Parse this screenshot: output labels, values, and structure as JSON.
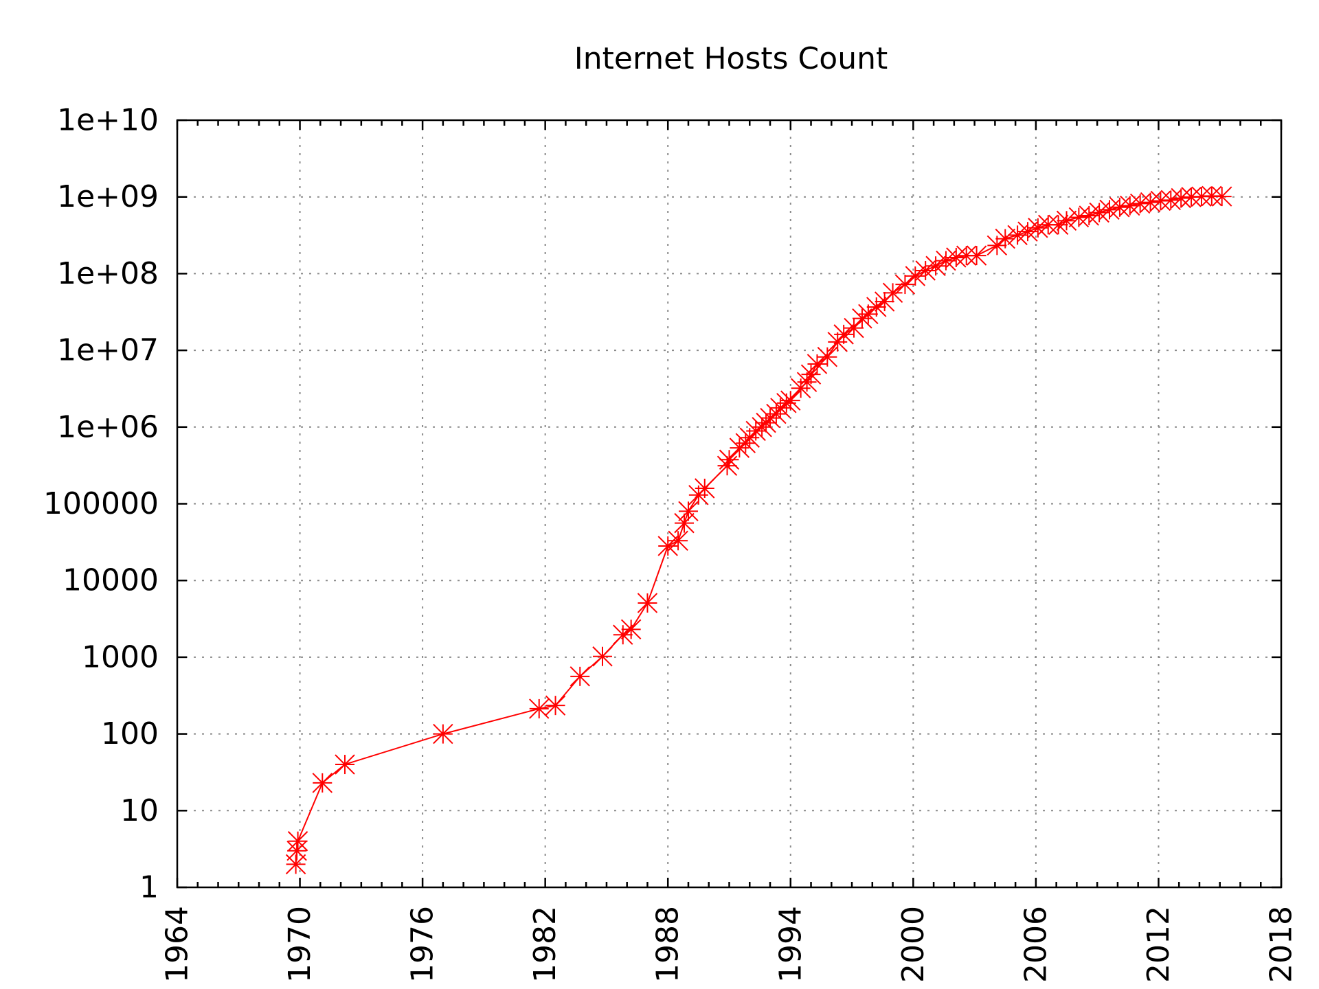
{
  "chart_data": {
    "type": "line",
    "title": "Internet Hosts Count",
    "xlabel": "",
    "ylabel": "",
    "xlim": [
      1964,
      2018
    ],
    "ylim": [
      1,
      10000000000
    ],
    "y_scale": "log",
    "grid": true,
    "marker": "star",
    "color": "#ff0000",
    "x_ticks": [
      "1964",
      "1970",
      "1976",
      "1982",
      "1988",
      "1994",
      "2000",
      "2006",
      "2012",
      "2018"
    ],
    "y_ticks": [
      "1",
      "10",
      "100",
      "1000",
      "10000",
      "100000",
      "1e+06",
      "1e+07",
      "1e+08",
      "1e+09",
      "1e+10"
    ],
    "series": [
      {
        "points": [
          [
            1969.8,
            2
          ],
          [
            1969.85,
            3
          ],
          [
            1969.9,
            4
          ],
          [
            1971.1,
            23
          ],
          [
            1972.2,
            40
          ],
          [
            1977.0,
            100
          ],
          [
            1981.7,
            213
          ],
          [
            1982.5,
            235
          ],
          [
            1983.7,
            562
          ],
          [
            1984.8,
            1024
          ],
          [
            1985.8,
            1961
          ],
          [
            1986.2,
            2308
          ],
          [
            1987.0,
            5089
          ],
          [
            1988.0,
            28174
          ],
          [
            1988.5,
            33000
          ],
          [
            1988.8,
            56000
          ],
          [
            1989.0,
            80000
          ],
          [
            1989.5,
            130000
          ],
          [
            1989.8,
            159000
          ],
          [
            1990.9,
            313000
          ],
          [
            1991.0,
            376000
          ],
          [
            1991.5,
            535000
          ],
          [
            1991.8,
            617000
          ],
          [
            1992.0,
            727000
          ],
          [
            1992.3,
            890000
          ],
          [
            1992.6,
            1000000
          ],
          [
            1992.8,
            1136000
          ],
          [
            1993.0,
            1313000
          ],
          [
            1993.3,
            1486000
          ],
          [
            1993.5,
            1776000
          ],
          [
            1993.8,
            2056000
          ],
          [
            1994.0,
            2217000
          ],
          [
            1994.5,
            3212000
          ],
          [
            1994.8,
            3864000
          ],
          [
            1995.0,
            4852000
          ],
          [
            1995.3,
            6642000
          ],
          [
            1995.8,
            8200000
          ],
          [
            1996.3,
            12881000
          ],
          [
            1996.6,
            16146000
          ],
          [
            1997.1,
            19540000
          ],
          [
            1997.5,
            26053000
          ],
          [
            1997.8,
            29670000
          ],
          [
            1998.2,
            36739000
          ],
          [
            1998.6,
            43230000
          ],
          [
            1999.0,
            56218000
          ],
          [
            1999.6,
            72398000
          ],
          [
            2000.1,
            93047000
          ],
          [
            2000.6,
            109574000
          ],
          [
            2001.1,
            125888000
          ],
          [
            2001.6,
            147345000
          ],
          [
            2002.1,
            162128000
          ],
          [
            2002.6,
            171638000
          ],
          [
            2003.1,
            172000000
          ],
          [
            2004.1,
            233101000
          ],
          [
            2004.5,
            285139000
          ],
          [
            2005.1,
            317646000
          ],
          [
            2005.6,
            353284000
          ],
          [
            2006.1,
            394991000
          ],
          [
            2006.6,
            433193000
          ],
          [
            2007.1,
            433000000
          ],
          [
            2007.5,
            489774000
          ],
          [
            2008.1,
            541677000
          ],
          [
            2008.6,
            570000000
          ],
          [
            2009.1,
            625226000
          ],
          [
            2009.6,
            681064000
          ],
          [
            2010.1,
            732740000
          ],
          [
            2010.6,
            768913000
          ],
          [
            2011.1,
            818374000
          ],
          [
            2011.6,
            849869000
          ],
          [
            2012.1,
            888239000
          ],
          [
            2012.6,
            908585000
          ],
          [
            2013.1,
            963518000
          ],
          [
            2013.6,
            996230000
          ],
          [
            2014.1,
            1010251000
          ],
          [
            2014.6,
            1028544000
          ],
          [
            2015.1,
            1012706000
          ]
        ]
      }
    ]
  }
}
